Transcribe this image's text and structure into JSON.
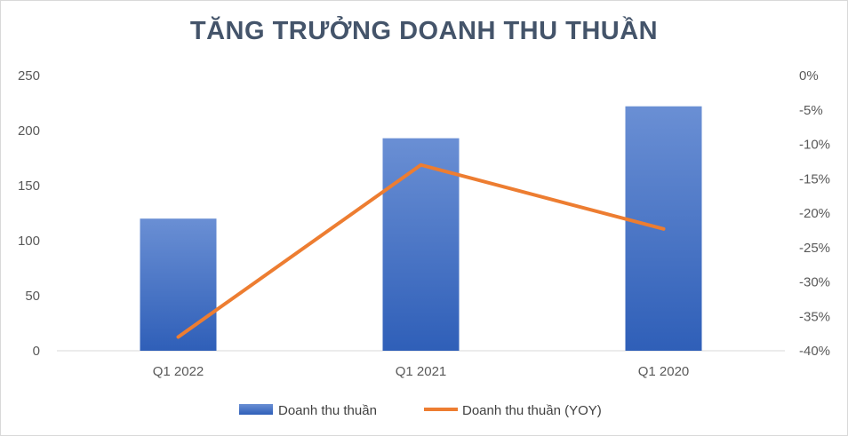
{
  "chart_data": {
    "type": "bar",
    "title": "TĂNG TRƯỞNG DOANH THU THUẦN",
    "categories": [
      "Q1 2022",
      "Q1 2021",
      "Q1 2020"
    ],
    "series": [
      {
        "name": "Doanh thu thuần",
        "type": "bar",
        "axis": "left",
        "values": [
          120,
          193,
          222
        ],
        "color": "#4472c4"
      },
      {
        "name": "Doanh thu thuần (YOY)",
        "type": "line",
        "axis": "right",
        "values": [
          -38,
          -13,
          -22.3
        ],
        "color": "#ed7d31"
      }
    ],
    "y_left": {
      "min": 0,
      "max": 250,
      "step": 50,
      "tick_labels": [
        "0",
        "50",
        "100",
        "150",
        "200",
        "250"
      ]
    },
    "y_right": {
      "min": -40,
      "max": 0,
      "step": 5,
      "tick_labels": [
        "0%",
        "-5%",
        "-10%",
        "-15%",
        "-20%",
        "-25%",
        "-30%",
        "-35%",
        "-40%"
      ]
    },
    "grid": false,
    "legend_position": "bottom"
  }
}
